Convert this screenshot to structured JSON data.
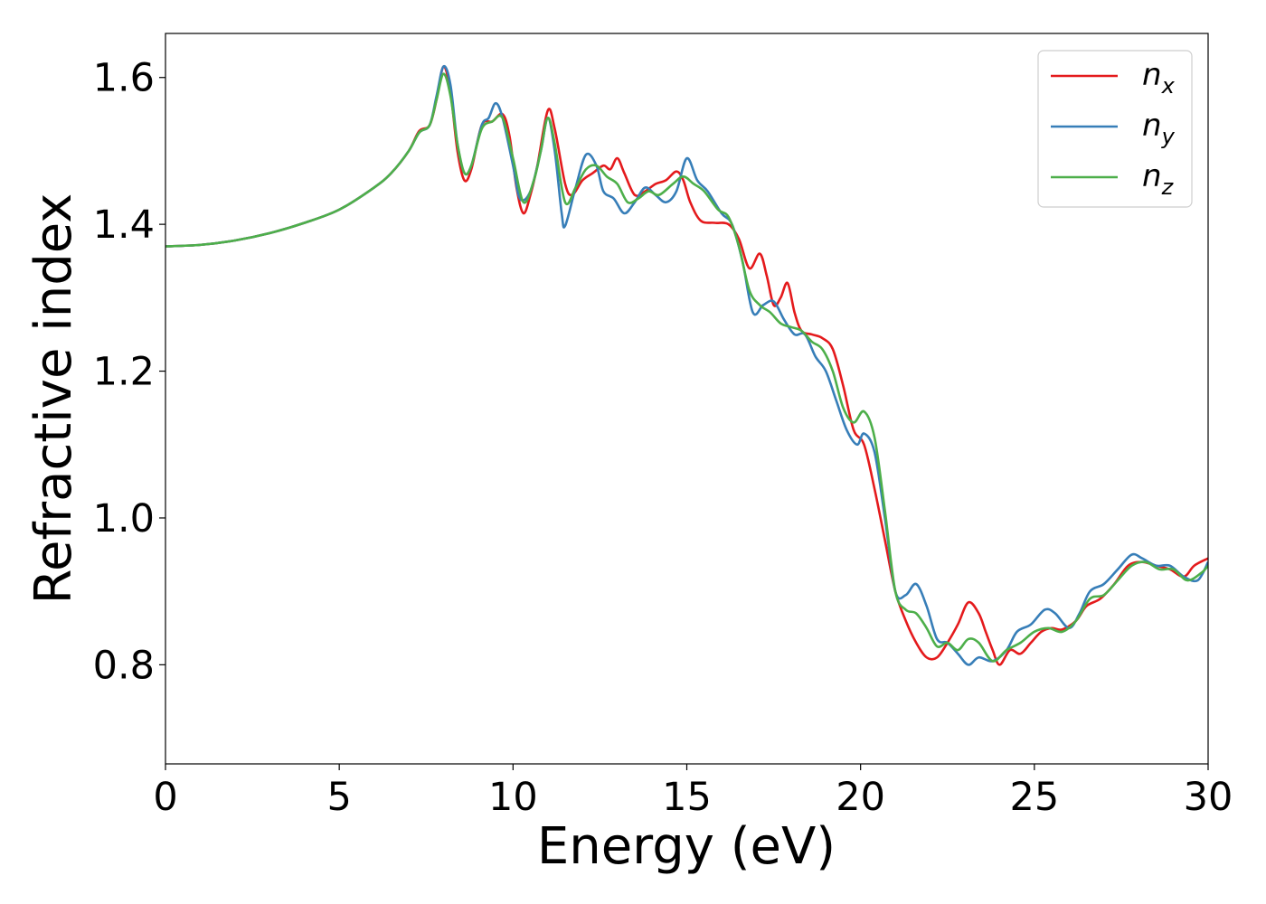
{
  "chart_data": {
    "type": "line",
    "xlabel": "Energy (eV)",
    "ylabel": "Refractive index",
    "xlim": [
      0,
      30
    ],
    "ylim": [
      0.665,
      1.66
    ],
    "xticks": [
      "0",
      "5",
      "10",
      "15",
      "20",
      "25",
      "30"
    ],
    "yticks": [
      "0.8",
      "1.0",
      "1.2",
      "1.4",
      "1.6"
    ],
    "legend_position": "top-right",
    "grid": false,
    "series": [
      {
        "name": "n_x",
        "label_base": "n",
        "label_sub": "x",
        "color": "#e41a1c",
        "points": [
          [
            0,
            1.37
          ],
          [
            1,
            1.372
          ],
          [
            2,
            1.378
          ],
          [
            3,
            1.388
          ],
          [
            4,
            1.402
          ],
          [
            5,
            1.42
          ],
          [
            6,
            1.45
          ],
          [
            6.5,
            1.47
          ],
          [
            7,
            1.5
          ],
          [
            7.3,
            1.527
          ],
          [
            7.6,
            1.535
          ],
          [
            7.8,
            1.57
          ],
          [
            8,
            1.615
          ],
          [
            8.2,
            1.58
          ],
          [
            8.4,
            1.5
          ],
          [
            8.6,
            1.46
          ],
          [
            8.8,
            1.475
          ],
          [
            9.1,
            1.535
          ],
          [
            9.4,
            1.54
          ],
          [
            9.7,
            1.55
          ],
          [
            9.9,
            1.52
          ],
          [
            10.1,
            1.45
          ],
          [
            10.3,
            1.415
          ],
          [
            10.5,
            1.44
          ],
          [
            10.7,
            1.48
          ],
          [
            11,
            1.555
          ],
          [
            11.2,
            1.53
          ],
          [
            11.5,
            1.455
          ],
          [
            11.7,
            1.44
          ],
          [
            12,
            1.46
          ],
          [
            12.3,
            1.47
          ],
          [
            12.6,
            1.48
          ],
          [
            12.8,
            1.475
          ],
          [
            13,
            1.49
          ],
          [
            13.2,
            1.47
          ],
          [
            13.5,
            1.44
          ],
          [
            13.8,
            1.445
          ],
          [
            14.1,
            1.455
          ],
          [
            14.4,
            1.46
          ],
          [
            14.7,
            1.472
          ],
          [
            14.9,
            1.46
          ],
          [
            15.1,
            1.43
          ],
          [
            15.4,
            1.405
          ],
          [
            15.8,
            1.402
          ],
          [
            16.2,
            1.4
          ],
          [
            16.5,
            1.38
          ],
          [
            16.8,
            1.34
          ],
          [
            17.1,
            1.36
          ],
          [
            17.3,
            1.33
          ],
          [
            17.5,
            1.29
          ],
          [
            17.7,
            1.3
          ],
          [
            17.9,
            1.32
          ],
          [
            18.1,
            1.28
          ],
          [
            18.3,
            1.255
          ],
          [
            18.6,
            1.25
          ],
          [
            18.9,
            1.245
          ],
          [
            19.2,
            1.23
          ],
          [
            19.5,
            1.18
          ],
          [
            19.8,
            1.12
          ],
          [
            20.1,
            1.1
          ],
          [
            20.4,
            1.04
          ],
          [
            20.7,
            0.97
          ],
          [
            21,
            0.9
          ],
          [
            21.3,
            0.86
          ],
          [
            21.6,
            0.83
          ],
          [
            21.9,
            0.81
          ],
          [
            22.2,
            0.81
          ],
          [
            22.5,
            0.83
          ],
          [
            22.8,
            0.855
          ],
          [
            23.1,
            0.885
          ],
          [
            23.4,
            0.87
          ],
          [
            23.6,
            0.845
          ],
          [
            23.8,
            0.82
          ],
          [
            24,
            0.8
          ],
          [
            24.3,
            0.82
          ],
          [
            24.6,
            0.815
          ],
          [
            24.9,
            0.83
          ],
          [
            25.2,
            0.845
          ],
          [
            25.5,
            0.85
          ],
          [
            25.8,
            0.848
          ],
          [
            26.2,
            0.86
          ],
          [
            26.5,
            0.88
          ],
          [
            26.9,
            0.89
          ],
          [
            27.3,
            0.91
          ],
          [
            27.7,
            0.935
          ],
          [
            28.1,
            0.94
          ],
          [
            28.5,
            0.935
          ],
          [
            28.9,
            0.93
          ],
          [
            29.3,
            0.92
          ],
          [
            29.6,
            0.935
          ],
          [
            30,
            0.945
          ]
        ]
      },
      {
        "name": "n_y",
        "label_base": "n",
        "label_sub": "y",
        "color": "#377eb8",
        "points": [
          [
            0,
            1.37
          ],
          [
            1,
            1.372
          ],
          [
            2,
            1.378
          ],
          [
            3,
            1.388
          ],
          [
            4,
            1.402
          ],
          [
            5,
            1.42
          ],
          [
            6,
            1.45
          ],
          [
            6.5,
            1.47
          ],
          [
            7,
            1.5
          ],
          [
            7.3,
            1.525
          ],
          [
            7.6,
            1.535
          ],
          [
            7.8,
            1.575
          ],
          [
            8,
            1.615
          ],
          [
            8.2,
            1.59
          ],
          [
            8.4,
            1.51
          ],
          [
            8.6,
            1.47
          ],
          [
            8.8,
            1.48
          ],
          [
            9.1,
            1.535
          ],
          [
            9.3,
            1.545
          ],
          [
            9.5,
            1.565
          ],
          [
            9.7,
            1.545
          ],
          [
            10,
            1.48
          ],
          [
            10.2,
            1.435
          ],
          [
            10.5,
            1.445
          ],
          [
            10.8,
            1.5
          ],
          [
            11,
            1.545
          ],
          [
            11.2,
            1.5
          ],
          [
            11.4,
            1.415
          ],
          [
            11.5,
            1.398
          ],
          [
            11.8,
            1.45
          ],
          [
            12.1,
            1.495
          ],
          [
            12.4,
            1.48
          ],
          [
            12.6,
            1.445
          ],
          [
            12.9,
            1.435
          ],
          [
            13.2,
            1.415
          ],
          [
            13.5,
            1.43
          ],
          [
            13.8,
            1.45
          ],
          [
            14.1,
            1.44
          ],
          [
            14.4,
            1.43
          ],
          [
            14.7,
            1.445
          ],
          [
            15,
            1.49
          ],
          [
            15.3,
            1.46
          ],
          [
            15.6,
            1.445
          ],
          [
            16,
            1.415
          ],
          [
            16.3,
            1.4
          ],
          [
            16.6,
            1.35
          ],
          [
            16.9,
            1.28
          ],
          [
            17.2,
            1.29
          ],
          [
            17.5,
            1.295
          ],
          [
            17.8,
            1.27
          ],
          [
            18.1,
            1.25
          ],
          [
            18.4,
            1.25
          ],
          [
            18.7,
            1.22
          ],
          [
            19,
            1.2
          ],
          [
            19.3,
            1.16
          ],
          [
            19.6,
            1.12
          ],
          [
            19.9,
            1.1
          ],
          [
            20.1,
            1.115
          ],
          [
            20.4,
            1.09
          ],
          [
            20.7,
            1.0
          ],
          [
            21,
            0.9
          ],
          [
            21.3,
            0.895
          ],
          [
            21.6,
            0.91
          ],
          [
            21.9,
            0.88
          ],
          [
            22.2,
            0.835
          ],
          [
            22.5,
            0.83
          ],
          [
            22.8,
            0.815
          ],
          [
            23.1,
            0.8
          ],
          [
            23.4,
            0.81
          ],
          [
            23.8,
            0.805
          ],
          [
            24.2,
            0.82
          ],
          [
            24.5,
            0.845
          ],
          [
            24.9,
            0.855
          ],
          [
            25.3,
            0.875
          ],
          [
            25.6,
            0.87
          ],
          [
            26,
            0.85
          ],
          [
            26.3,
            0.87
          ],
          [
            26.6,
            0.9
          ],
          [
            27,
            0.91
          ],
          [
            27.4,
            0.93
          ],
          [
            27.8,
            0.95
          ],
          [
            28.1,
            0.945
          ],
          [
            28.5,
            0.935
          ],
          [
            28.9,
            0.935
          ],
          [
            29.3,
            0.92
          ],
          [
            29.7,
            0.915
          ],
          [
            30,
            0.94
          ]
        ]
      },
      {
        "name": "n_z",
        "label_base": "n",
        "label_sub": "z",
        "color": "#4daf4a",
        "points": [
          [
            0,
            1.37
          ],
          [
            1,
            1.372
          ],
          [
            2,
            1.378
          ],
          [
            3,
            1.388
          ],
          [
            4,
            1.402
          ],
          [
            5,
            1.42
          ],
          [
            6,
            1.45
          ],
          [
            6.5,
            1.47
          ],
          [
            7,
            1.5
          ],
          [
            7.3,
            1.525
          ],
          [
            7.6,
            1.535
          ],
          [
            7.8,
            1.57
          ],
          [
            8,
            1.605
          ],
          [
            8.2,
            1.575
          ],
          [
            8.4,
            1.51
          ],
          [
            8.6,
            1.47
          ],
          [
            8.8,
            1.48
          ],
          [
            9.1,
            1.53
          ],
          [
            9.4,
            1.54
          ],
          [
            9.7,
            1.545
          ],
          [
            10,
            1.49
          ],
          [
            10.3,
            1.43
          ],
          [
            10.6,
            1.46
          ],
          [
            10.8,
            1.5
          ],
          [
            11,
            1.545
          ],
          [
            11.2,
            1.51
          ],
          [
            11.5,
            1.43
          ],
          [
            11.8,
            1.45
          ],
          [
            12.1,
            1.475
          ],
          [
            12.4,
            1.48
          ],
          [
            12.7,
            1.465
          ],
          [
            13,
            1.455
          ],
          [
            13.3,
            1.43
          ],
          [
            13.6,
            1.435
          ],
          [
            13.9,
            1.445
          ],
          [
            14.2,
            1.44
          ],
          [
            14.6,
            1.455
          ],
          [
            14.9,
            1.465
          ],
          [
            15.2,
            1.455
          ],
          [
            15.5,
            1.445
          ],
          [
            15.9,
            1.42
          ],
          [
            16.2,
            1.41
          ],
          [
            16.5,
            1.37
          ],
          [
            16.8,
            1.31
          ],
          [
            17.1,
            1.29
          ],
          [
            17.4,
            1.28
          ],
          [
            17.7,
            1.265
          ],
          [
            18,
            1.26
          ],
          [
            18.3,
            1.255
          ],
          [
            18.6,
            1.24
          ],
          [
            18.9,
            1.23
          ],
          [
            19.2,
            1.2
          ],
          [
            19.5,
            1.15
          ],
          [
            19.8,
            1.13
          ],
          [
            20.1,
            1.145
          ],
          [
            20.4,
            1.11
          ],
          [
            20.7,
            1.01
          ],
          [
            21,
            0.9
          ],
          [
            21.3,
            0.875
          ],
          [
            21.6,
            0.87
          ],
          [
            21.9,
            0.85
          ],
          [
            22.2,
            0.825
          ],
          [
            22.5,
            0.83
          ],
          [
            22.8,
            0.82
          ],
          [
            23.1,
            0.835
          ],
          [
            23.4,
            0.83
          ],
          [
            23.8,
            0.805
          ],
          [
            24.2,
            0.82
          ],
          [
            24.6,
            0.83
          ],
          [
            25,
            0.845
          ],
          [
            25.4,
            0.85
          ],
          [
            25.8,
            0.845
          ],
          [
            26.2,
            0.86
          ],
          [
            26.6,
            0.89
          ],
          [
            27,
            0.895
          ],
          [
            27.4,
            0.915
          ],
          [
            27.8,
            0.935
          ],
          [
            28.2,
            0.94
          ],
          [
            28.6,
            0.93
          ],
          [
            29,
            0.93
          ],
          [
            29.4,
            0.915
          ],
          [
            29.8,
            0.925
          ],
          [
            30,
            0.935
          ]
        ]
      }
    ]
  }
}
